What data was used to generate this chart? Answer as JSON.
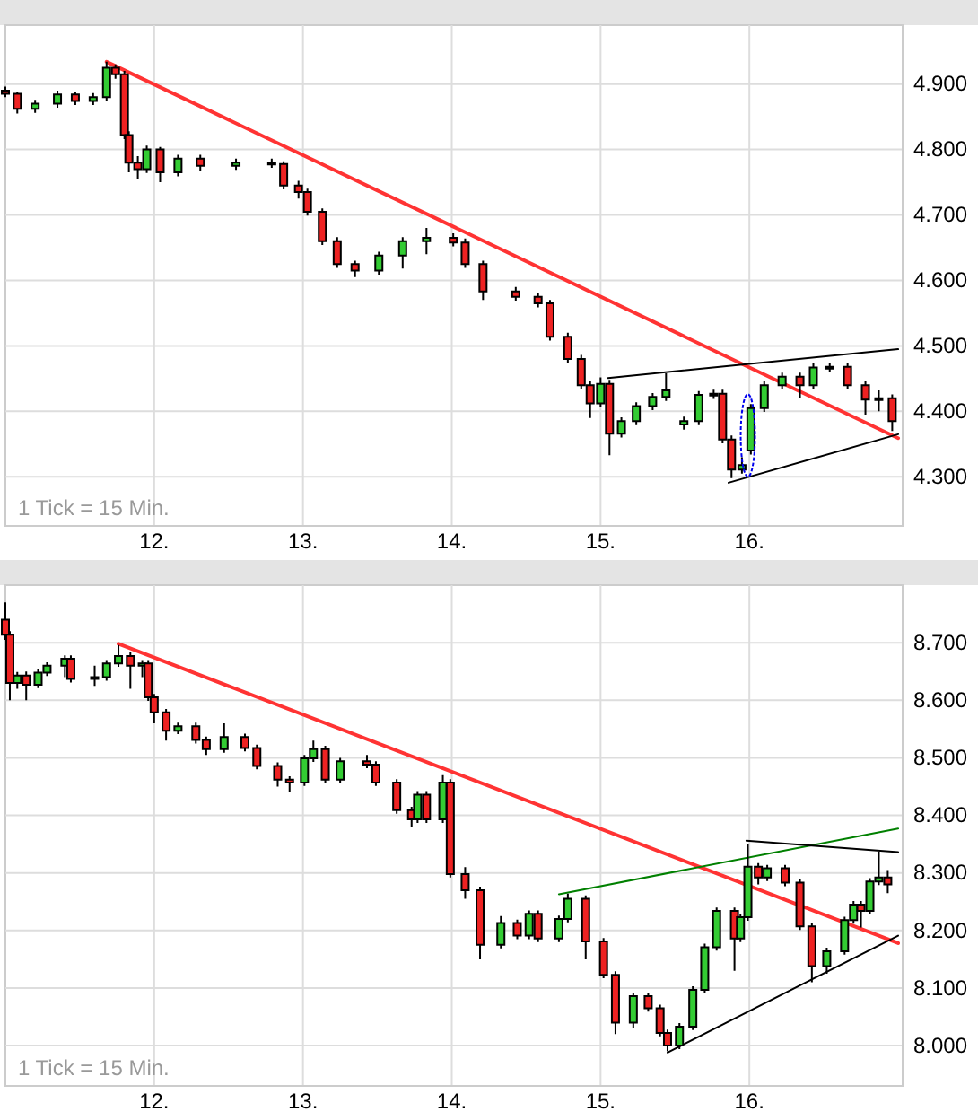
{
  "chart_data": [
    {
      "type": "candlestick",
      "x": [
        11.0,
        11.08,
        11.2,
        11.35,
        11.47,
        11.59,
        11.68,
        11.74,
        11.8,
        11.83,
        11.89,
        11.95,
        12.04,
        12.16,
        12.31,
        12.55,
        12.79,
        12.87,
        12.97,
        13.03,
        13.13,
        13.23,
        13.35,
        13.51,
        13.67,
        13.83,
        14.01,
        14.09,
        14.21,
        14.43,
        14.58,
        14.66,
        14.78,
        14.87,
        14.93,
        15.0,
        15.06,
        15.14,
        15.24,
        15.35,
        15.44,
        15.56,
        15.66,
        15.76,
        15.82,
        15.88,
        15.95,
        16.01,
        16.1,
        16.22,
        16.34,
        16.43,
        16.54,
        16.66,
        16.78,
        16.87,
        16.96
      ],
      "ohlc": [
        [
          4890,
          4896,
          4880,
          4885
        ],
        [
          4885,
          4888,
          4855,
          4862
        ],
        [
          4862,
          4876,
          4856,
          4870
        ],
        [
          4870,
          4890,
          4864,
          4884
        ],
        [
          4884,
          4888,
          4868,
          4874
        ],
        [
          4874,
          4886,
          4868,
          4880
        ],
        [
          4880,
          4934,
          4874,
          4925
        ],
        [
          4925,
          4930,
          4908,
          4915
        ],
        [
          4915,
          4920,
          4816,
          4822
        ],
        [
          4822,
          4828,
          4765,
          4780
        ],
        [
          4780,
          4790,
          4755,
          4770
        ],
        [
          4770,
          4806,
          4764,
          4800
        ],
        [
          4800,
          4804,
          4750,
          4765
        ],
        [
          4765,
          4792,
          4759,
          4786
        ],
        [
          4786,
          4792,
          4768,
          4775
        ],
        [
          4775,
          4786,
          4769,
          4780
        ],
        [
          4780,
          4786,
          4772,
          4778
        ],
        [
          4778,
          4782,
          4739,
          4745
        ],
        [
          4745,
          4752,
          4725,
          4735
        ],
        [
          4735,
          4740,
          4699,
          4705
        ],
        [
          4705,
          4710,
          4654,
          4660
        ],
        [
          4660,
          4666,
          4619,
          4625
        ],
        [
          4625,
          4630,
          4605,
          4615
        ],
        [
          4615,
          4644,
          4609,
          4638
        ],
        [
          4638,
          4666,
          4618,
          4660
        ],
        [
          4660,
          4680,
          4640,
          4665
        ],
        [
          4665,
          4672,
          4652,
          4658
        ],
        [
          4658,
          4664,
          4619,
          4625
        ],
        [
          4625,
          4630,
          4570,
          4583
        ],
        [
          4583,
          4590,
          4569,
          4575
        ],
        [
          4575,
          4580,
          4559,
          4565
        ],
        [
          4565,
          4570,
          4508,
          4514
        ],
        [
          4514,
          4520,
          4474,
          4480
        ],
        [
          4480,
          4486,
          4434,
          4440
        ],
        [
          4440,
          4446,
          4390,
          4412
        ],
        [
          4412,
          4452,
          4406,
          4442
        ],
        [
          4442,
          4448,
          4333,
          4366
        ],
        [
          4366,
          4391,
          4360,
          4385
        ],
        [
          4385,
          4414,
          4379,
          4408
        ],
        [
          4408,
          4428,
          4402,
          4422
        ],
        [
          4422,
          4458,
          4416,
          4432
        ],
        [
          4380,
          4392,
          4372,
          4385
        ],
        [
          4385,
          4431,
          4379,
          4425
        ],
        [
          4425,
          4433,
          4419,
          4427
        ],
        [
          4427,
          4433,
          4351,
          4357
        ],
        [
          4357,
          4363,
          4298,
          4311
        ],
        [
          4311,
          4330,
          4305,
          4318
        ],
        [
          4340,
          4411,
          4334,
          4405
        ],
        [
          4405,
          4446,
          4399,
          4440
        ],
        [
          4440,
          4459,
          4434,
          4453
        ],
        [
          4453,
          4459,
          4420,
          4440
        ],
        [
          4440,
          4473,
          4434,
          4467
        ],
        [
          4467,
          4474,
          4460,
          4468
        ],
        [
          4468,
          4474,
          4434,
          4440
        ],
        [
          4440,
          4446,
          4395,
          4418
        ],
        [
          4418,
          4432,
          4400,
          4420
        ],
        [
          4420,
          4426,
          4370,
          4385
        ]
      ],
      "series": [
        {
          "type": "line",
          "color": "#ff3333",
          "x": [
            11.68,
            17
          ],
          "values": [
            4934,
            4359
          ]
        },
        {
          "type": "line",
          "color": "#000000",
          "x": [
            15.05,
            17
          ],
          "values": [
            4451,
            4495
          ]
        },
        {
          "type": "line",
          "color": "#000000",
          "x": [
            15.86,
            17
          ],
          "values": [
            4291,
            4365
          ]
        }
      ],
      "xlim": [
        11,
        17.03
      ],
      "xticks": [
        {
          "value": 12,
          "label": "12."
        },
        {
          "value": 13,
          "label": "13."
        },
        {
          "value": 14,
          "label": "14."
        },
        {
          "value": 15,
          "label": "15."
        },
        {
          "value": 16,
          "label": "16."
        }
      ],
      "ylim": [
        4225,
        4990
      ],
      "yticks": [
        {
          "value": 4300,
          "label": "4.300"
        },
        {
          "value": 4400,
          "label": "4.400"
        },
        {
          "value": 4500,
          "label": "4.500"
        },
        {
          "value": 4600,
          "label": "4.600"
        },
        {
          "value": 4700,
          "label": "4.700"
        },
        {
          "value": 4800,
          "label": "4.800"
        },
        {
          "value": 4900,
          "label": "4.900"
        }
      ],
      "grid": true,
      "annotations": [
        "1 Tick = 15 Min."
      ]
    },
    {
      "type": "candlestick",
      "x": [
        11.0,
        11.03,
        11.08,
        11.14,
        11.22,
        11.28,
        11.4,
        11.44,
        11.6,
        11.68,
        11.76,
        11.84,
        11.92,
        11.96,
        12.0,
        12.08,
        12.16,
        12.28,
        12.35,
        12.47,
        12.61,
        12.69,
        12.83,
        12.91,
        13.01,
        13.07,
        13.15,
        13.25,
        13.43,
        13.49,
        13.63,
        13.73,
        13.77,
        13.83,
        13.94,
        13.99,
        14.09,
        14.19,
        14.33,
        14.44,
        14.52,
        14.58,
        14.72,
        14.78,
        14.9,
        15.02,
        15.1,
        15.22,
        15.32,
        15.4,
        15.45,
        15.53,
        15.62,
        15.7,
        15.78,
        15.9,
        15.94,
        15.99,
        16.06,
        16.12,
        16.24,
        16.34,
        16.42,
        16.52,
        16.64,
        16.7,
        16.75,
        16.81,
        16.87,
        16.93
      ],
      "ohlc": [
        [
          8740,
          8770,
          8705,
          8714
        ],
        [
          8714,
          8720,
          8600,
          8630
        ],
        [
          8630,
          8649,
          8620,
          8643
        ],
        [
          8643,
          8650,
          8600,
          8627
        ],
        [
          8627,
          8654,
          8621,
          8648
        ],
        [
          8648,
          8666,
          8642,
          8660
        ],
        [
          8660,
          8678,
          8640,
          8672
        ],
        [
          8672,
          8678,
          8631,
          8637
        ],
        [
          8637,
          8660,
          8625,
          8640
        ],
        [
          8640,
          8670,
          8634,
          8664
        ],
        [
          8664,
          8696,
          8658,
          8677
        ],
        [
          8677,
          8683,
          8620,
          8660
        ],
        [
          8660,
          8670,
          8640,
          8664
        ],
        [
          8664,
          8670,
          8599,
          8605
        ],
        [
          8605,
          8611,
          8560,
          8579
        ],
        [
          8579,
          8585,
          8530,
          8547
        ],
        [
          8547,
          8561,
          8541,
          8555
        ],
        [
          8555,
          8561,
          8525,
          8531
        ],
        [
          8531,
          8537,
          8505,
          8515
        ],
        [
          8515,
          8560,
          8509,
          8536
        ],
        [
          8536,
          8542,
          8511,
          8517
        ],
        [
          8517,
          8523,
          8480,
          8486
        ],
        [
          8486,
          8492,
          8450,
          8462
        ],
        [
          8462,
          8468,
          8440,
          8457
        ],
        [
          8457,
          8505,
          8451,
          8499
        ],
        [
          8499,
          8530,
          8493,
          8515
        ],
        [
          8515,
          8521,
          8456,
          8462
        ],
        [
          8462,
          8500,
          8456,
          8494
        ],
        [
          8494,
          8505,
          8482,
          8488
        ],
        [
          8488,
          8494,
          8451,
          8457
        ],
        [
          8457,
          8463,
          8403,
          8409
        ],
        [
          8409,
          8415,
          8380,
          8393
        ],
        [
          8393,
          8442,
          8387,
          8436
        ],
        [
          8436,
          8442,
          8387,
          8393
        ],
        [
          8393,
          8470,
          8387,
          8457
        ],
        [
          8457,
          8463,
          8292,
          8298
        ],
        [
          8298,
          8310,
          8255,
          8270
        ],
        [
          8270,
          8276,
          8150,
          8175
        ],
        [
          8175,
          8225,
          8169,
          8213
        ],
        [
          8213,
          8219,
          8185,
          8191
        ],
        [
          8191,
          8235,
          8185,
          8229
        ],
        [
          8229,
          8235,
          8180,
          8186
        ],
        [
          8186,
          8226,
          8180,
          8220
        ],
        [
          8220,
          8264,
          8214,
          8255
        ],
        [
          8255,
          8261,
          8150,
          8181
        ],
        [
          8181,
          8187,
          8117,
          8123
        ],
        [
          8123,
          8129,
          8020,
          8040
        ],
        [
          8040,
          8092,
          8030,
          8086
        ],
        [
          8086,
          8092,
          8059,
          8065
        ],
        [
          8065,
          8071,
          8016,
          8022
        ],
        [
          8022,
          8028,
          7990,
          8000
        ],
        [
          8000,
          8039,
          7994,
          8033
        ],
        [
          8033,
          8103,
          8027,
          8097
        ],
        [
          8097,
          8177,
          8091,
          8171
        ],
        [
          8171,
          8240,
          8165,
          8234
        ],
        [
          8234,
          8240,
          8130,
          8186
        ],
        [
          8186,
          8229,
          8180,
          8223
        ],
        [
          8223,
          8351,
          8217,
          8311
        ],
        [
          8311,
          8317,
          8280,
          8292
        ],
        [
          8292,
          8314,
          8286,
          8308
        ],
        [
          8308,
          8314,
          8277,
          8283
        ],
        [
          8283,
          8289,
          8201,
          8207
        ],
        [
          8207,
          8213,
          8110,
          8138
        ],
        [
          8138,
          8170,
          8125,
          8164
        ],
        [
          8164,
          8224,
          8158,
          8218
        ],
        [
          8218,
          8251,
          8212,
          8245
        ],
        [
          8245,
          8251,
          8205,
          8234
        ],
        [
          8234,
          8291,
          8228,
          8285
        ],
        [
          8285,
          8337,
          8279,
          8292
        ],
        [
          8292,
          8305,
          8265,
          8280
        ]
      ],
      "series": [
        {
          "type": "line",
          "color": "#ff3333",
          "x": [
            11.76,
            17
          ],
          "values": [
            8698,
            8178
          ]
        },
        {
          "type": "line",
          "color": "#008000",
          "x": [
            14.72,
            17
          ],
          "values": [
            8263,
            8377
          ]
        },
        {
          "type": "line",
          "color": "#000000",
          "x": [
            15.98,
            17
          ],
          "values": [
            8356,
            8336
          ]
        },
        {
          "type": "line",
          "color": "#000000",
          "x": [
            15.45,
            17
          ],
          "values": [
            7988,
            8191
          ]
        }
      ],
      "xlim": [
        11,
        17.03
      ],
      "xticks": [
        {
          "value": 12,
          "label": "12."
        },
        {
          "value": 13,
          "label": "13."
        },
        {
          "value": 14,
          "label": "14."
        },
        {
          "value": 15,
          "label": "15."
        },
        {
          "value": 16,
          "label": "16."
        }
      ],
      "ylim": [
        7930,
        8800
      ],
      "yticks": [
        {
          "value": 8000,
          "label": "8.000"
        },
        {
          "value": 8100,
          "label": "8.100"
        },
        {
          "value": 8200,
          "label": "8.200"
        },
        {
          "value": 8300,
          "label": "8.300"
        },
        {
          "value": 8400,
          "label": "8.400"
        },
        {
          "value": 8500,
          "label": "8.500"
        },
        {
          "value": 8600,
          "label": "8.600"
        },
        {
          "value": 8700,
          "label": "8.700"
        }
      ],
      "grid": true,
      "annotations": [
        "1 Tick = 15 Min."
      ]
    }
  ]
}
